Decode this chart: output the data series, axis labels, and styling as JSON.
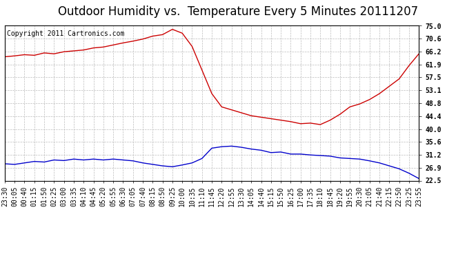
{
  "title": "Outdoor Humidity vs.  Temperature Every 5 Minutes 20111207",
  "copyright": "Copyright 2011 Cartronics.com",
  "ylim": [
    22.5,
    75.0
  ],
  "yticks": [
    22.5,
    26.9,
    31.2,
    35.6,
    40.0,
    44.4,
    48.8,
    53.1,
    57.5,
    61.9,
    66.2,
    70.6,
    75.0
  ],
  "background_color": "#ffffff",
  "grid_color": "#bbbbbb",
  "red_color": "#cc0000",
  "blue_color": "#0000cc",
  "time_labels": [
    "23:30",
    "00:05",
    "00:40",
    "01:15",
    "01:50",
    "02:25",
    "03:00",
    "03:35",
    "04:10",
    "04:45",
    "05:20",
    "05:55",
    "06:30",
    "07:05",
    "07:40",
    "08:15",
    "08:50",
    "09:25",
    "10:00",
    "10:35",
    "11:10",
    "11:45",
    "12:20",
    "12:55",
    "13:30",
    "14:05",
    "14:40",
    "15:15",
    "15:50",
    "16:25",
    "17:00",
    "17:35",
    "18:10",
    "18:45",
    "19:20",
    "19:55",
    "20:30",
    "21:05",
    "21:40",
    "22:15",
    "22:50",
    "23:25",
    "23:55"
  ],
  "humidity_values": [
    64.5,
    64.8,
    65.2,
    65.0,
    65.8,
    65.5,
    66.2,
    66.5,
    66.8,
    67.5,
    67.8,
    68.5,
    69.2,
    69.8,
    70.5,
    71.5,
    72.0,
    73.8,
    72.5,
    68.0,
    60.0,
    52.0,
    47.5,
    46.5,
    45.5,
    44.5,
    44.0,
    43.5,
    43.0,
    42.5,
    41.8,
    42.0,
    41.5,
    43.0,
    45.0,
    47.5,
    48.5,
    50.0,
    52.0,
    54.5,
    57.0,
    61.5,
    65.5
  ],
  "temperature_values": [
    28.2,
    28.0,
    28.5,
    29.0,
    28.8,
    29.5,
    29.3,
    29.8,
    29.5,
    29.8,
    29.5,
    29.8,
    29.5,
    29.2,
    28.5,
    28.0,
    27.5,
    27.2,
    27.8,
    28.5,
    30.0,
    33.5,
    34.0,
    34.2,
    33.8,
    33.2,
    32.8,
    32.0,
    32.2,
    31.5,
    31.5,
    31.2,
    31.0,
    30.8,
    30.2,
    30.0,
    29.8,
    29.2,
    28.5,
    27.5,
    26.5,
    25.0,
    23.2
  ],
  "title_fontsize": 12,
  "tick_fontsize": 7,
  "copyright_fontsize": 7
}
